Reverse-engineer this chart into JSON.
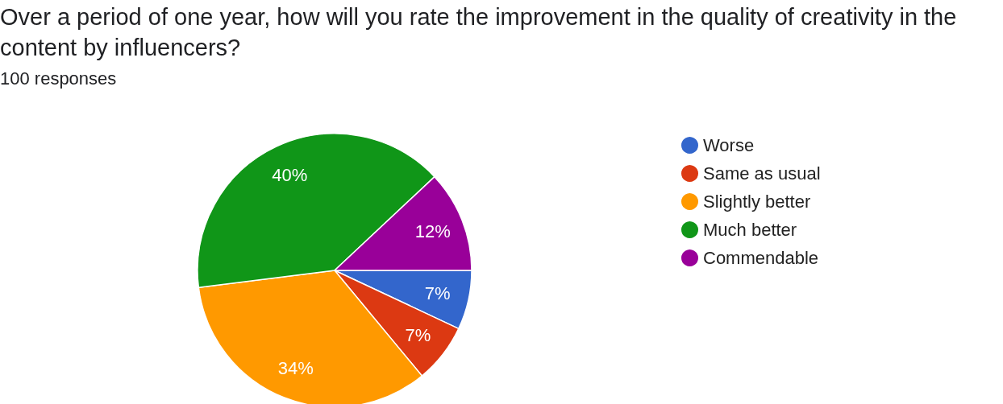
{
  "chart_data": {
    "type": "pie",
    "title": "Over a period of one year, how will you rate the improvement in the quality of creativity in the content by influencers?",
    "subtitle": "100 responses",
    "categories": [
      "Worse",
      "Same as usual",
      "Slightly better",
      "Much better",
      "Commendable"
    ],
    "values": [
      7,
      7,
      34,
      40,
      12
    ],
    "value_labels": [
      "7%",
      "7%",
      "34%",
      "40%",
      "12%"
    ],
    "colors": [
      "#3366cc",
      "#dc3912",
      "#ff9900",
      "#109618",
      "#990099"
    ],
    "legend": "right"
  }
}
